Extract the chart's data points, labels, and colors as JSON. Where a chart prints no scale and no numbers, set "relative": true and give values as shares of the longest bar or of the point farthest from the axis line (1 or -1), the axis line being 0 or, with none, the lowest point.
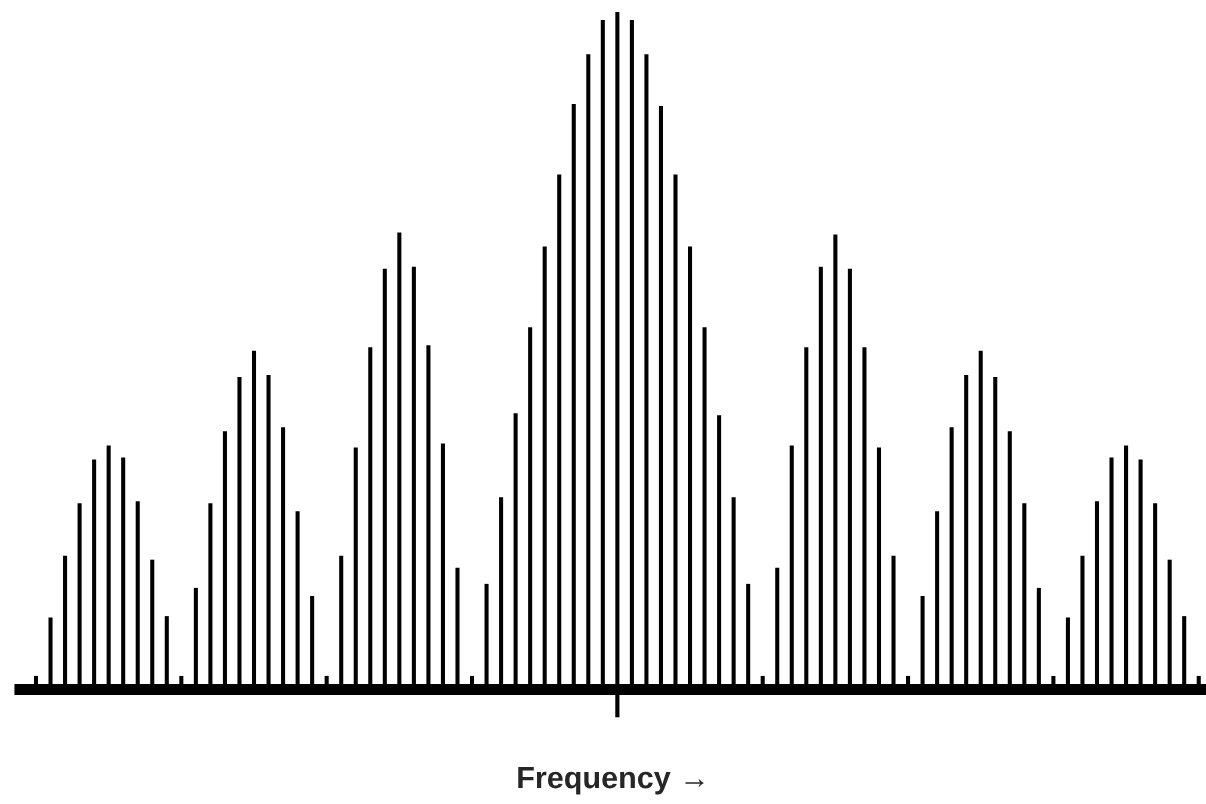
{
  "chart_data": {
    "type": "bar",
    "relative": true,
    "xlabel": "Frequency →",
    "color": "#000000",
    "categories": [
      null,
      null,
      null,
      null,
      null,
      null,
      null,
      null,
      null,
      null,
      null,
      null,
      null,
      null,
      null,
      null,
      null,
      null,
      null,
      null,
      null,
      null,
      null,
      null,
      null,
      null,
      null,
      null,
      null,
      null,
      null,
      null,
      null,
      null,
      null,
      null,
      null,
      null,
      null,
      null,
      null,
      null,
      null,
      null,
      null,
      null,
      null,
      null,
      null,
      null,
      null,
      null,
      null,
      null,
      null,
      null,
      null,
      null,
      null,
      null,
      null,
      null,
      null,
      null,
      null,
      null,
      null,
      null,
      null,
      null,
      null,
      null,
      null,
      null,
      null,
      null,
      null,
      null,
      null,
      null,
      null
    ],
    "values": [
      0.012,
      0.099,
      0.191,
      0.269,
      0.334,
      0.355,
      0.337,
      0.272,
      0.185,
      0.101,
      0.012,
      0.143,
      0.269,
      0.376,
      0.457,
      0.496,
      0.46,
      0.382,
      0.257,
      0.131,
      0.012,
      0.191,
      0.352,
      0.501,
      0.618,
      0.672,
      0.621,
      0.504,
      0.358,
      0.173,
      0.012,
      0.149,
      0.278,
      0.403,
      0.531,
      0.651,
      0.758,
      0.863,
      0.937,
      0.988,
      1,
      0.988,
      0.937,
      0.86,
      0.758,
      0.651,
      0.531,
      0.4,
      0.278,
      0.149,
      0.012,
      0.173,
      0.355,
      0.501,
      0.621,
      0.669,
      0.618,
      0.501,
      0.352,
      0.191,
      0.012,
      0.131,
      0.257,
      0.382,
      0.46,
      0.496,
      0.457,
      0.376,
      0.269,
      0.143,
      0.012,
      0.099,
      0.191,
      0.272,
      0.337,
      0.355,
      0.334,
      0.269,
      0.185,
      0.101,
      0.012
    ]
  }
}
